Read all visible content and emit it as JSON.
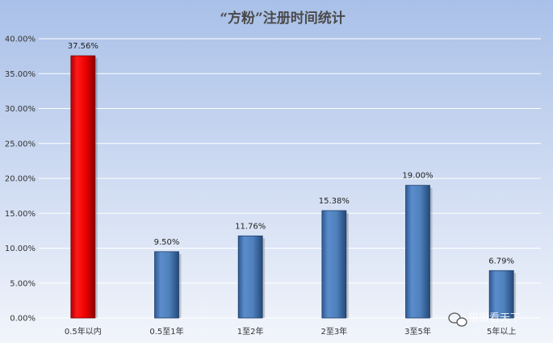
{
  "chart_data": {
    "type": "bar",
    "title": "“方粉”注册时间统计",
    "categories": [
      "0.5年以内",
      "0.5至1年",
      "1至2年",
      "2至3年",
      "3至5年",
      "5年以上"
    ],
    "values": [
      37.56,
      9.5,
      11.76,
      15.38,
      19.0,
      6.79
    ],
    "data_labels": [
      "37.56%",
      "9.50%",
      "11.76%",
      "15.38%",
      "19.00%",
      "6.79%"
    ],
    "ylim": [
      0,
      40
    ],
    "yticks": [
      {
        "value": 0,
        "label": "0.00%"
      },
      {
        "value": 5,
        "label": "5.00%"
      },
      {
        "value": 10,
        "label": "10.00%"
      },
      {
        "value": 15,
        "label": "15.00%"
      },
      {
        "value": 20,
        "label": "20.00%"
      },
      {
        "value": 25,
        "label": "25.00%"
      },
      {
        "value": 30,
        "label": "30.00%"
      },
      {
        "value": 35,
        "label": "35.00%"
      },
      {
        "value": 40,
        "label": "40.00%"
      }
    ],
    "grid": true,
    "colors": {
      "highlight": "#ff0000",
      "bar": "#4f81bd",
      "grid": "#ffffff",
      "bg_top": "#a9c0e8",
      "bg_bottom": "#f2f5fb"
    },
    "highlight_index": 0
  },
  "watermark": {
    "icon": "wechat-icon",
    "text": "猫眼看天下"
  }
}
